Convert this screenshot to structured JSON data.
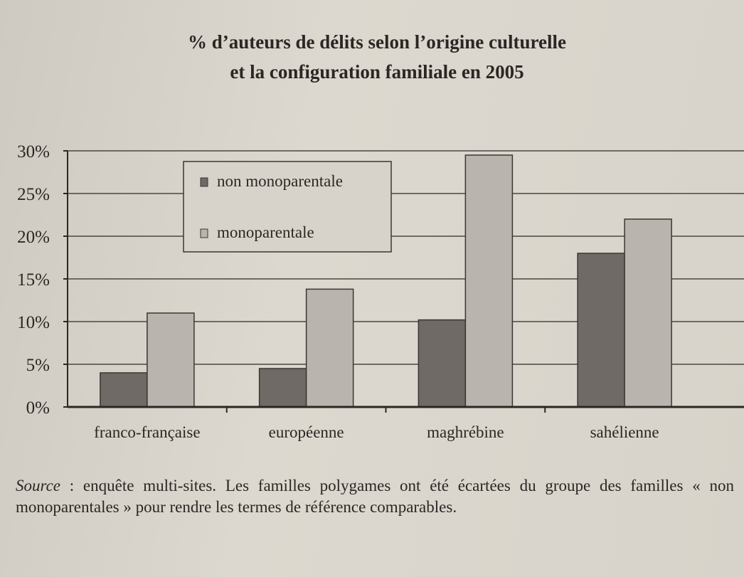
{
  "chart_data": {
    "type": "bar",
    "title": "% d’auteurs de délits selon l’origine culturelle et la configuration familiale en 2005",
    "title_lines": [
      "% d’auteurs de délits selon l’origine culturelle",
      "et la configuration familiale en 2005"
    ],
    "categories": [
      "franco-française",
      "européenne",
      "maghrébine",
      "sahélienne"
    ],
    "series": [
      {
        "name": "non monoparentale",
        "values": [
          4,
          4.5,
          10.2,
          18
        ],
        "color": "#6f6a66"
      },
      {
        "name": "monoparentale",
        "values": [
          11,
          13.8,
          29.5,
          22
        ],
        "color": "#b9b4ae"
      }
    ],
    "ylim": [
      0,
      30
    ],
    "yticks": [
      "0%",
      "5%",
      "10%",
      "15%",
      "20%",
      "25%",
      "30%"
    ],
    "ytick_values": [
      0,
      5,
      10,
      15,
      20,
      25,
      30
    ],
    "grid": true,
    "legend": "top-left",
    "xlabel": "",
    "ylabel": ""
  },
  "caption": {
    "source_label": "Source",
    "text": " : enquête multi-sites. Les familles polygames ont été écartées du groupe des familles « non monoparentales » pour rendre les termes de référence comparables."
  }
}
